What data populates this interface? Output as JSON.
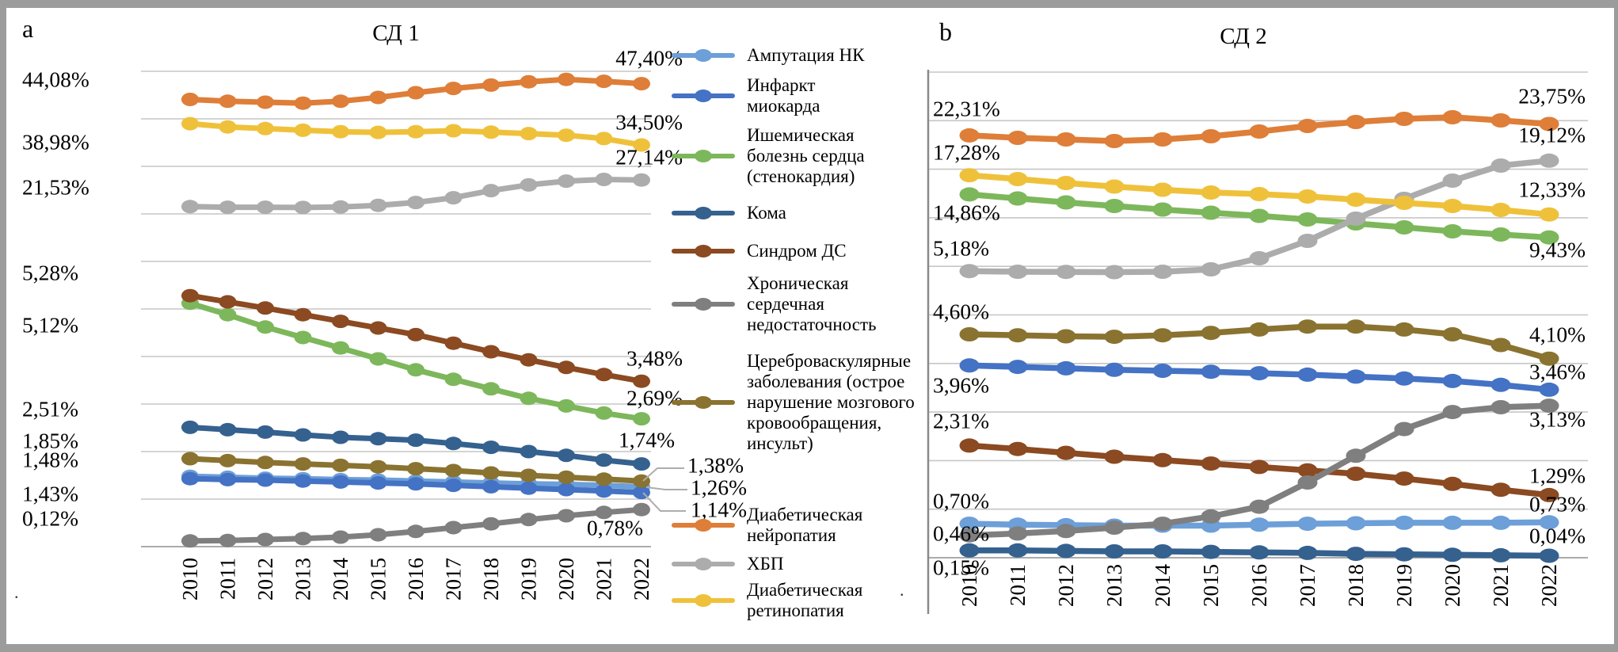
{
  "frame": {
    "letter_a": "a",
    "letter_b": "b"
  },
  "legend": {
    "items": [
      {
        "id": "amputation",
        "label": "Ампутация НК",
        "color": "#6D9FD8"
      },
      {
        "id": "infarction",
        "label": "Инфаркт\nмиокарда",
        "color": "#4472C4"
      },
      {
        "id": "ihd",
        "label": "Ишемическая\nболезнь сердца\n(стенокардия)",
        "color": "#7DB75B"
      },
      {
        "id": "coma",
        "label": "Кома",
        "color": "#35618F"
      },
      {
        "id": "dfs",
        "label": "Синдром ДС",
        "color": "#8B4A21"
      },
      {
        "id": "chf",
        "label": "Хроническая\nсердечная\nнедостаточность",
        "color": "#7F7F7F"
      },
      {
        "id": "cvd",
        "label": "Цереброваскулярные\nзаболевания (острое\nнарушение мозгового\nкровообращения,\nинсульт)",
        "color": "#8A7330"
      },
      {
        "id": "neuropathy",
        "label": "Диабетическая\nнейропатия",
        "color": "#DE7E38"
      },
      {
        "id": "ckd",
        "label": "ХБП",
        "color": "#ACACAC"
      },
      {
        "id": "retinopathy",
        "label": "Диабетическая\nретинопатия",
        "color": "#EFC13B"
      }
    ]
  },
  "chart_data": [
    {
      "type": "line",
      "panel": "a",
      "title": "СД 1",
      "x_labels": [
        "2010",
        "2011",
        "2012",
        "2013",
        "2014",
        "2015",
        "2016",
        "2017",
        "2018",
        "2019",
        "2020",
        "2021",
        "2022"
      ],
      "axes": {
        "primary_range": [
          -50,
          50
        ],
        "secondary_range": [
          0,
          10
        ],
        "gridlines": 11,
        "grid": true,
        "legend_position": "right-of-panel"
      },
      "series": [
        {
          "id": "amputation",
          "name": "Ампутация НК",
          "color": "#6D9FD8",
          "axis": "secondary",
          "values": [
            1.48,
            1.46,
            1.44,
            1.43,
            1.41,
            1.4,
            1.38,
            1.36,
            1.34,
            1.32,
            1.31,
            1.29,
            1.26
          ],
          "start_label": "1,48%",
          "end_label": "1,26%"
        },
        {
          "id": "infarction",
          "name": "Инфаркт миокарда",
          "color": "#4472C4",
          "axis": "secondary",
          "values": [
            1.43,
            1.41,
            1.4,
            1.38,
            1.36,
            1.34,
            1.32,
            1.29,
            1.26,
            1.23,
            1.2,
            1.17,
            1.14
          ],
          "start_label": "1,43%",
          "end_label": "1,14%"
        },
        {
          "id": "ihd",
          "name": "Ишемическая болезнь сердца (стенокардия)",
          "color": "#7DB75B",
          "axis": "secondary",
          "values": [
            5.12,
            4.88,
            4.62,
            4.4,
            4.18,
            3.95,
            3.72,
            3.52,
            3.32,
            3.12,
            2.96,
            2.81,
            2.69
          ],
          "start_label": "5,12%",
          "end_label": "2,69%"
        },
        {
          "id": "coma",
          "name": "Кома",
          "color": "#35618F",
          "axis": "secondary",
          "values": [
            2.51,
            2.46,
            2.41,
            2.35,
            2.3,
            2.27,
            2.24,
            2.17,
            2.09,
            2.0,
            1.92,
            1.82,
            1.74
          ],
          "start_label": "2,51%",
          "end_label": "1,74%"
        },
        {
          "id": "dfs",
          "name": "Синдром ДС",
          "color": "#8B4A21",
          "axis": "secondary",
          "values": [
            5.28,
            5.15,
            5.02,
            4.88,
            4.74,
            4.6,
            4.46,
            4.28,
            4.1,
            3.93,
            3.77,
            3.62,
            3.48
          ],
          "start_label": "5,28%",
          "end_label": "3,48%"
        },
        {
          "id": "chf",
          "name": "Хроническая сердечная недостаточность",
          "color": "#7F7F7F",
          "axis": "secondary",
          "values": [
            0.12,
            0.13,
            0.15,
            0.17,
            0.2,
            0.25,
            0.32,
            0.4,
            0.48,
            0.57,
            0.65,
            0.72,
            0.78
          ],
          "start_label": "0,12%",
          "end_label": "0,78%"
        },
        {
          "id": "cvd",
          "name": "Цереброваскулярные заболевания (острое нарушение мозгового кровообращения, инсульт)",
          "color": "#8A7330",
          "axis": "secondary",
          "values": [
            1.85,
            1.81,
            1.77,
            1.74,
            1.71,
            1.68,
            1.64,
            1.6,
            1.55,
            1.5,
            1.46,
            1.42,
            1.38
          ],
          "start_label": "1,85%",
          "end_label": "1,38%"
        },
        {
          "id": "neuropathy",
          "name": "Диабетическая нейропатия",
          "color": "#DE7E38",
          "axis": "primary",
          "values": [
            44.08,
            43.7,
            43.5,
            43.3,
            43.7,
            44.5,
            45.5,
            46.4,
            47.1,
            47.8,
            48.3,
            47.9,
            47.4
          ],
          "start_label": "44,08%",
          "end_label": "47,40%"
        },
        {
          "id": "ckd",
          "name": "ХБП",
          "color": "#ACACAC",
          "axis": "primary",
          "values": [
            21.53,
            21.4,
            21.4,
            21.35,
            21.45,
            21.8,
            22.4,
            23.4,
            24.9,
            26.1,
            26.9,
            27.25,
            27.14
          ],
          "start_label": "21,53%",
          "end_label": "27,14%"
        },
        {
          "id": "retinopathy",
          "name": "Диабетическая ретинопатия",
          "color": "#EFC13B",
          "axis": "primary",
          "values": [
            38.98,
            38.3,
            37.95,
            37.6,
            37.3,
            37.15,
            37.3,
            37.5,
            37.2,
            36.9,
            36.55,
            35.85,
            34.5
          ],
          "start_label": "38,98%",
          "end_label": "34,50%"
        }
      ]
    },
    {
      "type": "line",
      "panel": "b",
      "title": "СД 2",
      "x_labels": [
        "2010",
        "2011",
        "2012",
        "2013",
        "2014",
        "2015",
        "2016",
        "2017",
        "2018",
        "2019",
        "2020",
        "2021",
        "2022"
      ],
      "axes": {
        "primary_range": [
          -31,
          29.4
        ],
        "secondary_range": [
          0,
          10
        ],
        "gridlines": 11,
        "grid": true,
        "y_axis_line": true
      },
      "series": [
        {
          "id": "amputation",
          "name": "Ампутация НК",
          "color": "#6D9FD8",
          "axis": "secondary",
          "values": [
            0.7,
            0.68,
            0.67,
            0.66,
            0.66,
            0.66,
            0.68,
            0.7,
            0.71,
            0.72,
            0.72,
            0.72,
            0.73
          ],
          "start_label": "0,70%",
          "end_label": "0,73%"
        },
        {
          "id": "infarction",
          "name": "Инфаркт миокарда",
          "color": "#4472C4",
          "axis": "secondary",
          "values": [
            3.96,
            3.93,
            3.9,
            3.87,
            3.85,
            3.83,
            3.8,
            3.77,
            3.73,
            3.69,
            3.64,
            3.56,
            3.46
          ],
          "start_label": "3,96%",
          "end_label": "3,46%"
        },
        {
          "id": "ihd",
          "name": "Ишемическая болезнь сердца (стенокардия)",
          "color": "#7DB75B",
          "axis": "primary",
          "values": [
            14.86,
            14.35,
            13.85,
            13.4,
            12.95,
            12.55,
            12.15,
            11.7,
            11.2,
            10.7,
            10.2,
            9.8,
            9.43
          ],
          "start_label": "14,86%",
          "end_label": "9,43%"
        },
        {
          "id": "coma",
          "name": "Кома",
          "color": "#35618F",
          "axis": "secondary",
          "values": [
            0.15,
            0.15,
            0.14,
            0.13,
            0.13,
            0.12,
            0.11,
            0.1,
            0.08,
            0.07,
            0.06,
            0.05,
            0.04
          ],
          "start_label": "0,15%",
          "end_label": "0,04%"
        },
        {
          "id": "dfs",
          "name": "Синдром ДС",
          "color": "#8B4A21",
          "axis": "secondary",
          "values": [
            2.31,
            2.24,
            2.16,
            2.08,
            2.01,
            1.94,
            1.87,
            1.8,
            1.73,
            1.63,
            1.52,
            1.4,
            1.29
          ],
          "start_label": "2,31%",
          "end_label": "1,29%"
        },
        {
          "id": "chf",
          "name": "Хроническая сердечная недостаточность",
          "color": "#7F7F7F",
          "axis": "secondary",
          "values": [
            0.46,
            0.5,
            0.55,
            0.62,
            0.7,
            0.85,
            1.05,
            1.55,
            2.1,
            2.65,
            3.0,
            3.1,
            3.13
          ],
          "start_label": "0,46%",
          "end_label": "3,13%"
        },
        {
          "id": "cvd",
          "name": "Цереброваскулярные заболевания (острое нарушение мозгового кровообращения, инсульт)",
          "color": "#8A7330",
          "axis": "secondary",
          "values": [
            4.6,
            4.58,
            4.56,
            4.55,
            4.58,
            4.63,
            4.7,
            4.76,
            4.76,
            4.7,
            4.6,
            4.38,
            4.1
          ],
          "start_label": "4,60%",
          "end_label": "4,10%"
        },
        {
          "id": "neuropathy",
          "name": "Диабетическая нейропатия",
          "color": "#DE7E38",
          "axis": "primary",
          "values": [
            22.31,
            22.0,
            21.8,
            21.6,
            21.8,
            22.2,
            22.8,
            23.5,
            24.0,
            24.4,
            24.6,
            24.2,
            23.75
          ],
          "start_label": "22,31%",
          "end_label": "23,75%"
        },
        {
          "id": "ckd",
          "name": "ХБП",
          "color": "#ACACAC",
          "axis": "primary",
          "values": [
            5.18,
            5.1,
            5.08,
            5.05,
            5.1,
            5.4,
            6.8,
            9.0,
            11.8,
            14.3,
            16.6,
            18.5,
            19.12
          ],
          "start_label": "5,18%",
          "end_label": "19,12%"
        },
        {
          "id": "retinopathy",
          "name": "Диабетическая ретинопатия",
          "color": "#EFC13B",
          "axis": "primary",
          "values": [
            17.28,
            16.8,
            16.3,
            15.85,
            15.45,
            15.1,
            14.9,
            14.6,
            14.2,
            13.8,
            13.4,
            12.9,
            12.33
          ],
          "start_label": "17,28%",
          "end_label": "12,33%"
        }
      ]
    }
  ],
  "artifacts": {
    "dot_left": ".",
    "dot_right": "."
  }
}
